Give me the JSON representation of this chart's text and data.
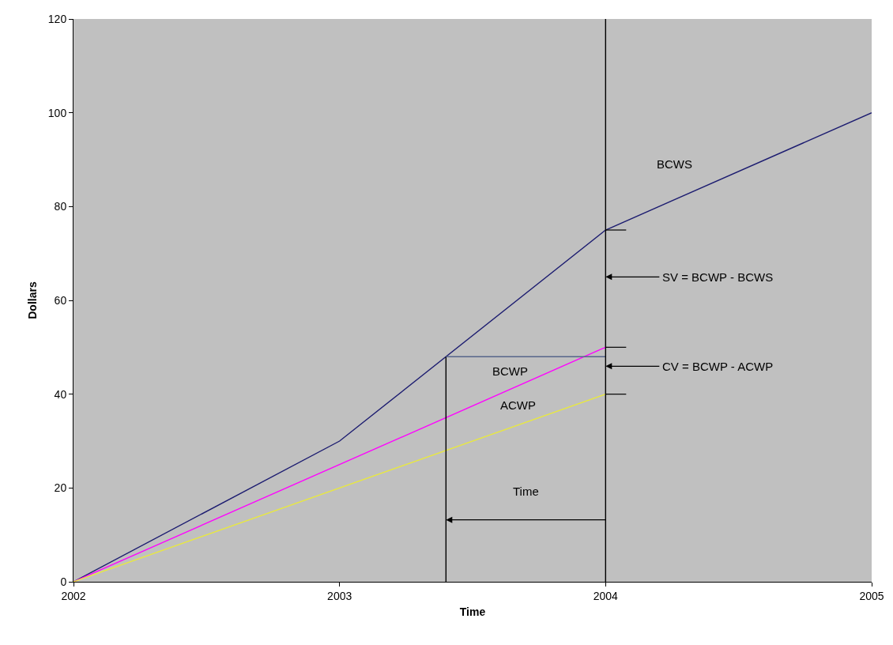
{
  "chart_data": {
    "type": "line",
    "xlabel": "Time",
    "ylabel": "Dollars",
    "xlim": [
      2002,
      2005
    ],
    "xticks": [
      2002,
      2003,
      2004,
      2005
    ],
    "ylim": [
      0,
      120
    ],
    "yticks": [
      0,
      20,
      40,
      60,
      80,
      100,
      120
    ],
    "grid": false,
    "legend": false,
    "marker": "none",
    "line_style": "solid",
    "series": [
      {
        "name": "BCWS",
        "color": "#1c1c70",
        "x": [
          2002,
          2003,
          2004,
          2005
        ],
        "values": [
          0,
          30,
          75,
          100
        ]
      },
      {
        "name": "BCWP",
        "color": "#ff00ff",
        "x": [
          2002,
          2004
        ],
        "values": [
          0,
          50
        ]
      },
      {
        "name": "ACWP",
        "color": "#e8e840",
        "x": [
          2002,
          2004
        ],
        "values": [
          0,
          40
        ]
      },
      {
        "color": "#000000",
        "x": [
          2003.4,
          2003.4
        ],
        "values": [
          0,
          48
        ]
      },
      {
        "color": "#56648a",
        "x": [
          2003.4,
          2004
        ],
        "values": [
          48,
          48
        ]
      }
    ],
    "ref_lines": [
      {
        "axis": "x",
        "value": 2004,
        "color": "#000000"
      }
    ],
    "annotations": [
      "SV = BCWP - BCWS",
      "CV = BCWP - ACWP",
      "Time"
    ]
  }
}
